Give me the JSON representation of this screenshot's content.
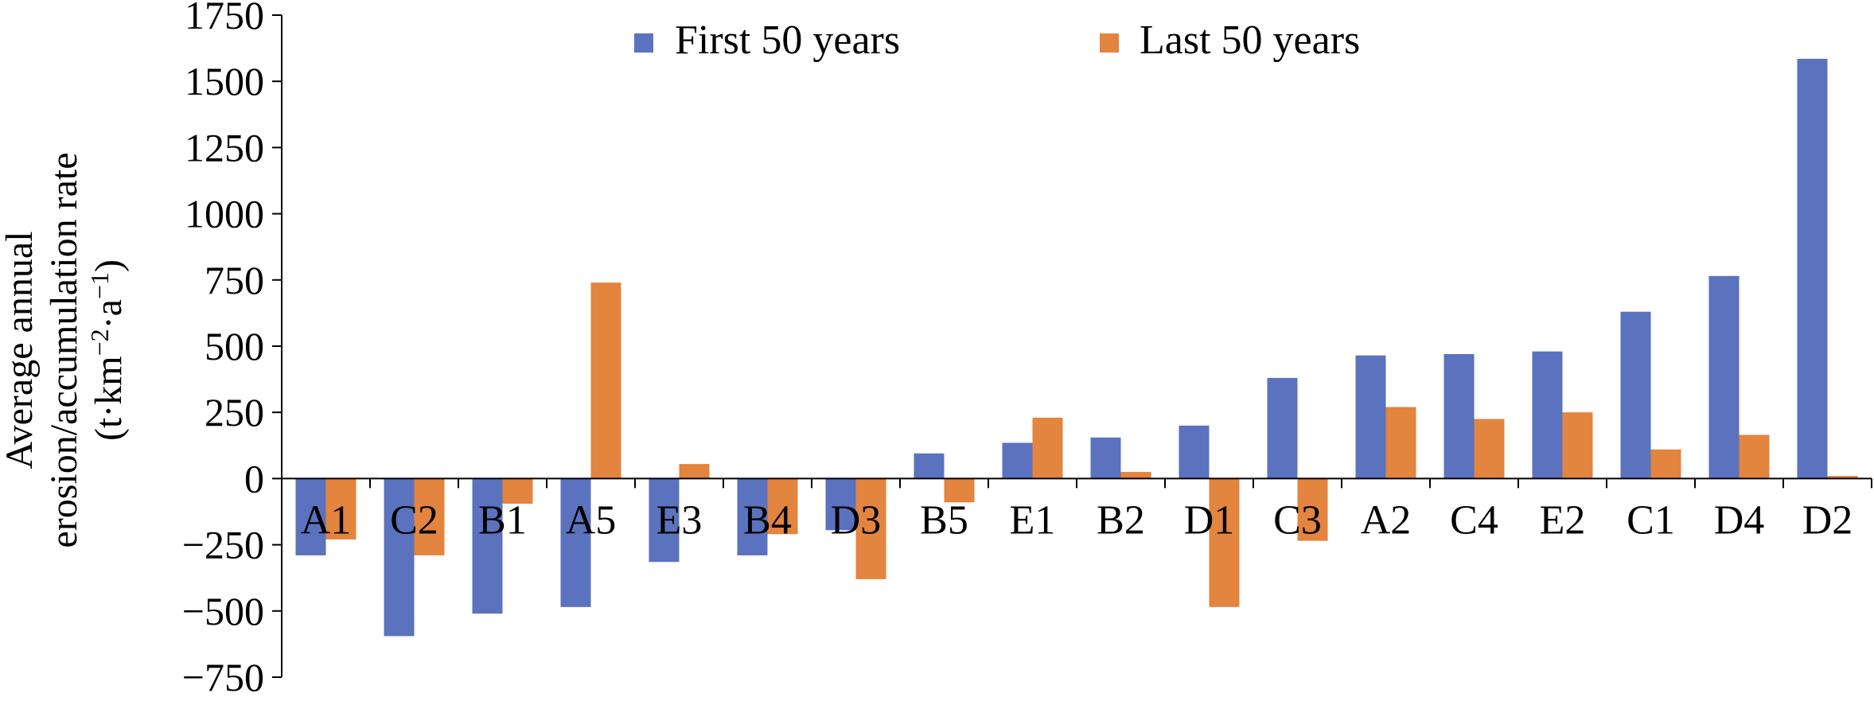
{
  "chart_data": {
    "type": "bar",
    "ylabel_lines": [
      "Average annual",
      "erosion/accumulation rate"
    ],
    "ylabel_unit": {
      "base": "(t·km",
      "sup1": "−2",
      "mid": "·a",
      "sup2": "−1",
      "end": ")"
    },
    "ylim": [
      -750,
      1750
    ],
    "yticks": [
      -750,
      -500,
      -250,
      0,
      250,
      500,
      750,
      1000,
      1250,
      1500,
      1750
    ],
    "ytick_labels": [
      "−750",
      "−500",
      "−250",
      "0",
      "250",
      "500",
      "750",
      "1000",
      "1250",
      "1500",
      "1750"
    ],
    "categories": [
      "A1",
      "C2",
      "B1",
      "A5",
      "E3",
      "B4",
      "D3",
      "B5",
      "E1",
      "B2",
      "D1",
      "C3",
      "A2",
      "C4",
      "E2",
      "C1",
      "D4",
      "D2"
    ],
    "series": [
      {
        "name": "First 50 years",
        "color": "#5B72BE",
        "values": [
          -290,
          -595,
          -510,
          -485,
          -315,
          -290,
          -195,
          95,
          135,
          155,
          200,
          380,
          465,
          470,
          480,
          630,
          765,
          1585
        ]
      },
      {
        "name": "Last 50 years",
        "color": "#E3843F",
        "values": [
          -230,
          -290,
          -95,
          740,
          55,
          -210,
          -380,
          -90,
          230,
          25,
          -485,
          -235,
          270,
          225,
          250,
          110,
          165,
          10
        ]
      }
    ],
    "legend_position": "top",
    "grid": false
  }
}
